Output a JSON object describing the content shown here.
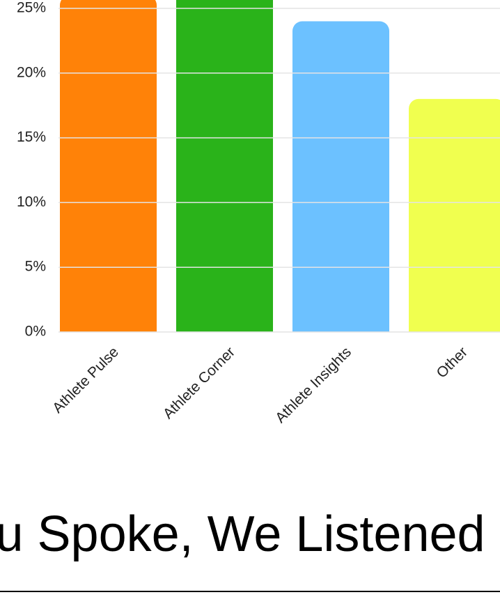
{
  "chart_data": {
    "type": "bar",
    "categories": [
      "Athlete Pulse",
      "Athlete Corner",
      "Athlete Insights",
      "Other"
    ],
    "values": [
      26,
      28,
      24,
      18
    ],
    "colors": [
      "#ff8208",
      "#2ab31a",
      "#6cc1ff",
      "#f0ff4f"
    ],
    "ylim": [
      0,
      30
    ],
    "yticks": [
      {
        "value": 0,
        "label": "0%"
      },
      {
        "value": 5,
        "label": "5%"
      },
      {
        "value": 10,
        "label": "10%"
      },
      {
        "value": 15,
        "label": "15%"
      },
      {
        "value": 20,
        "label": "20%"
      },
      {
        "value": 25,
        "label": "25%"
      }
    ],
    "grid": true
  },
  "heading": "You Spoke, We Listened"
}
